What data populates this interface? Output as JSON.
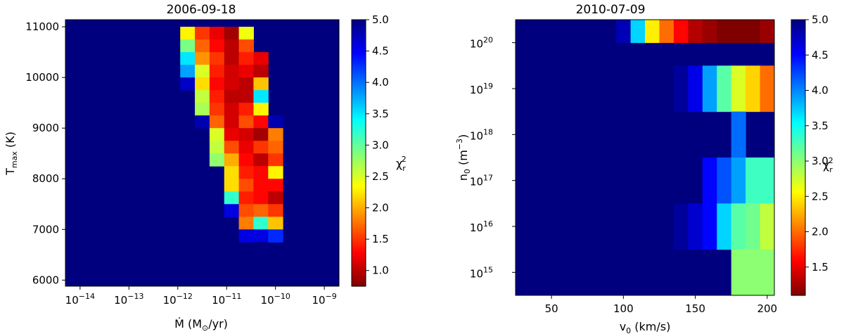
{
  "chart_data": [
    {
      "type": "heatmap",
      "title": "2006-09-18",
      "xlabel_main": "Ṁ (M",
      "xlabel_unit": "/yr)",
      "ylabel_main": "T",
      "ylabel_sub": "max",
      "ylabel_unit": " (K)",
      "x_scale": "log",
      "xlim_log10": [
        -14.3,
        -8.7
      ],
      "ylim": [
        5880,
        11140
      ],
      "x_ticks": [
        {
          "exp": -14,
          "base": "10",
          "sup": "−14"
        },
        {
          "exp": -13,
          "base": "10",
          "sup": "−13"
        },
        {
          "exp": -12,
          "base": "10",
          "sup": "−12"
        },
        {
          "exp": -11,
          "base": "10",
          "sup": "−11"
        },
        {
          "exp": -10,
          "base": "10",
          "sup": "−10"
        },
        {
          "exp": -9,
          "base": "10",
          "sup": "−9"
        }
      ],
      "y_ticks": [
        "6000",
        "7000",
        "8000",
        "9000",
        "10000",
        "11000"
      ],
      "y_tick_values": [
        6000,
        7000,
        8000,
        9000,
        10000,
        11000
      ],
      "cell_x_log10_edges": [
        -11.95,
        -11.65,
        -11.35,
        -11.05,
        -10.75,
        -10.45,
        -10.15,
        -9.85,
        -9.55,
        -9.25,
        -8.95
      ],
      "cell_y_height": 250,
      "columns": [
        {
          "col": 0,
          "cells": [
            [
              10875,
              2.3
            ],
            [
              10625,
              2.9
            ],
            [
              10375,
              3.5
            ],
            [
              10125,
              3.8
            ],
            [
              9875,
              4.7
            ]
          ]
        },
        {
          "col": 1,
          "cells": [
            [
              10875,
              1.5
            ],
            [
              10625,
              1.7
            ],
            [
              10375,
              1.9
            ],
            [
              10125,
              2.5
            ],
            [
              9875,
              2.2
            ],
            [
              9625,
              2.6
            ],
            [
              9375,
              2.7
            ],
            [
              9125,
              4.8
            ]
          ]
        },
        {
          "col": 2,
          "cells": [
            [
              10875,
              1.2
            ],
            [
              10625,
              1.3
            ],
            [
              10375,
              1.5
            ],
            [
              10125,
              1.4
            ],
            [
              9875,
              1.3
            ],
            [
              9625,
              1.4
            ],
            [
              9375,
              1.5
            ],
            [
              9125,
              1.7
            ],
            [
              8875,
              2.5
            ],
            [
              8625,
              2.6
            ],
            [
              8375,
              2.8
            ]
          ]
        },
        {
          "col": 3,
          "cells": [
            [
              10875,
              0.9
            ],
            [
              10625,
              1.0
            ],
            [
              10375,
              1.0
            ],
            [
              10125,
              1.1
            ],
            [
              9875,
              1.1
            ],
            [
              9625,
              1.0
            ],
            [
              9375,
              1.1
            ],
            [
              9125,
              1.1
            ],
            [
              8875,
              1.2
            ],
            [
              8625,
              1.6
            ],
            [
              8375,
              2.0
            ],
            [
              8125,
              2.2
            ],
            [
              7875,
              2.2
            ],
            [
              7625,
              3.2
            ],
            [
              7375,
              4.6
            ]
          ]
        },
        {
          "col": 4,
          "cells": [
            [
              10875,
              2.4
            ],
            [
              10625,
              1.6
            ],
            [
              10375,
              1.4
            ],
            [
              10125,
              1.2
            ],
            [
              9875,
              1.0
            ],
            [
              9625,
              1.0
            ],
            [
              9375,
              1.4
            ],
            [
              9125,
              1.6
            ],
            [
              8875,
              1.1
            ],
            [
              8625,
              1.2
            ],
            [
              8375,
              1.3
            ],
            [
              8125,
              1.4
            ],
            [
              7875,
              1.6
            ],
            [
              7625,
              1.4
            ],
            [
              7375,
              1.6
            ],
            [
              7125,
              1.8
            ],
            [
              6875,
              4.6
            ]
          ]
        },
        {
          "col": 5,
          "cells": [
            [
              10375,
              1.2
            ],
            [
              10125,
              1.0
            ],
            [
              9875,
              2.1
            ],
            [
              9625,
              3.5
            ],
            [
              9375,
              2.3
            ],
            [
              9125,
              1.3
            ],
            [
              8875,
              0.9
            ],
            [
              8625,
              1.5
            ],
            [
              8375,
              1.0
            ],
            [
              8125,
              1.3
            ],
            [
              7875,
              1.3
            ],
            [
              7625,
              1.3
            ],
            [
              7375,
              1.7
            ],
            [
              7125,
              3.2
            ],
            [
              6875,
              4.6
            ],
            [
              6625,
              5.0
            ]
          ]
        },
        {
          "col": 6,
          "cells": [
            [
              9125,
              4.8
            ],
            [
              8875,
              1.8
            ],
            [
              8625,
              1.7
            ],
            [
              8375,
              1.5
            ],
            [
              8125,
              2.3
            ],
            [
              7875,
              1.3
            ],
            [
              7625,
              1.0
            ],
            [
              7375,
              1.5
            ],
            [
              7125,
              2.1
            ],
            [
              6875,
              4.3
            ]
          ]
        }
      ],
      "colorbar": {
        "label_base": "χ",
        "label_sub": "r",
        "label_sup": "2",
        "vmin": 0.75,
        "vmax": 5.0,
        "ticks": [
          "1.0",
          "1.5",
          "2.0",
          "2.5",
          "3.0",
          "3.5",
          "4.0",
          "4.5",
          "5.0"
        ],
        "tick_values": [
          1.0,
          1.5,
          2.0,
          2.5,
          3.0,
          3.5,
          4.0,
          4.5,
          5.0
        ]
      }
    },
    {
      "type": "heatmap",
      "title": "2010-07-09",
      "xlabel_main": "v",
      "xlabel_sub": "0",
      "xlabel_unit": " (km/s)",
      "ylabel_main": "n",
      "ylabel_sub": "0",
      "ylabel_unit": " (m",
      "ylabel_sup": "−3",
      "ylabel_close": ")",
      "y_scale": "log",
      "xlim": [
        25,
        205
      ],
      "ylim_log10": [
        14.5,
        20.5
      ],
      "x_ticks": [
        "50",
        "100",
        "150",
        "200"
      ],
      "x_tick_values": [
        50,
        100,
        150,
        200
      ],
      "y_ticks": [
        {
          "exp": 15,
          "base": "10",
          "sup": "15"
        },
        {
          "exp": 16,
          "base": "10",
          "sup": "16"
        },
        {
          "exp": 17,
          "base": "10",
          "sup": "17"
        },
        {
          "exp": 18,
          "base": "10",
          "sup": "18"
        },
        {
          "exp": 19,
          "base": "10",
          "sup": "19"
        },
        {
          "exp": 20,
          "base": "10",
          "sup": "20"
        }
      ],
      "rows": [
        {
          "row": "1e20",
          "log_band": [
            20.0,
            20.5
          ],
          "cells": [
            [
              100,
              4.8
            ],
            [
              110,
              3.7
            ],
            [
              120,
              2.5
            ],
            [
              130,
              2.0
            ],
            [
              140,
              1.6
            ],
            [
              150,
              1.3
            ],
            [
              160,
              1.2
            ],
            [
              170,
              1.1
            ],
            [
              180,
              1.1
            ],
            [
              190,
              1.1
            ],
            [
              200,
              1.2
            ]
          ]
        },
        {
          "row": "1e19",
          "log_band": [
            18.5,
            19.5
          ],
          "cells": [
            [
              140,
              4.9
            ],
            [
              150,
              4.6
            ],
            [
              160,
              3.9
            ],
            [
              170,
              3.2
            ],
            [
              180,
              2.7
            ],
            [
              190,
              2.4
            ],
            [
              200,
              2.0
            ]
          ]
        },
        {
          "row": "1e18",
          "log_band": [
            17.5,
            18.5
          ],
          "cells": [
            [
              180,
              4.1
            ]
          ]
        },
        {
          "row": "1e17",
          "log_band": [
            16.5,
            17.5
          ],
          "cells": [
            [
              160,
              4.5
            ],
            [
              170,
              4.2
            ],
            [
              180,
              3.9
            ],
            [
              190,
              3.3
            ],
            [
              200,
              3.3
            ]
          ]
        },
        {
          "row": "1e16",
          "log_band": [
            15.5,
            16.5
          ],
          "cells": [
            [
              140,
              4.9
            ],
            [
              150,
              4.7
            ],
            [
              160,
              4.5
            ],
            [
              170,
              3.7
            ],
            [
              180,
              3.2
            ],
            [
              190,
              3.1
            ],
            [
              200,
              2.8
            ]
          ]
        },
        {
          "row": "1e15",
          "log_band": [
            14.5,
            15.5
          ],
          "cells": [
            [
              180,
              3.0
            ],
            [
              190,
              3.0
            ],
            [
              200,
              3.0
            ]
          ]
        }
      ],
      "colorbar": {
        "label_base": "χ",
        "label_sub": "r",
        "label_sup": "2",
        "vmin": 1.1,
        "vmax": 5.0,
        "ticks": [
          "1.5",
          "2.0",
          "2.5",
          "3.0",
          "3.5",
          "4.0",
          "4.5",
          "5.0"
        ],
        "tick_values": [
          1.5,
          2.0,
          2.5,
          3.0,
          3.5,
          4.0,
          4.5,
          5.0
        ]
      }
    }
  ],
  "colors": {
    "background_cell": "#00007f",
    "axis": "#000000"
  }
}
